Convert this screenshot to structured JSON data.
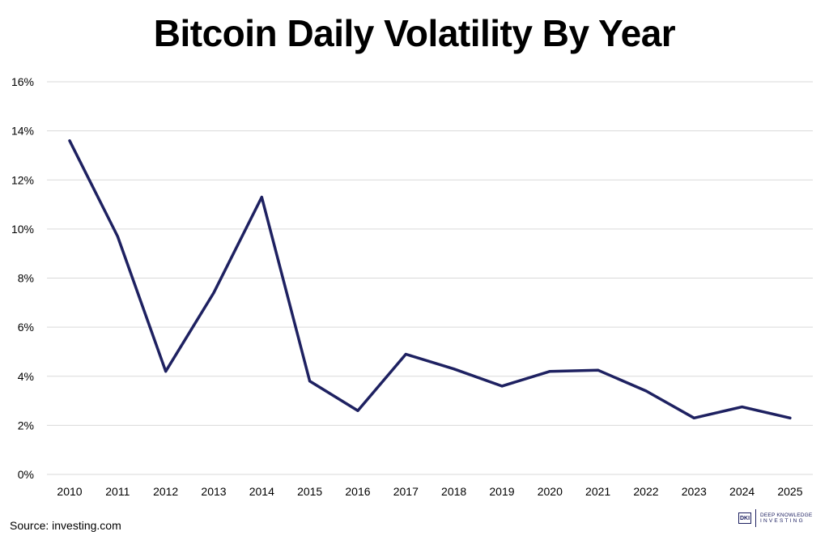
{
  "source_text": "Source: investing.com",
  "logo": {
    "mark": "DKI",
    "line1": "DEEP KNOWLEDGE",
    "line2": "INVESTING"
  },
  "colors": {
    "line": "#1e2161",
    "grid": "#d9d9d9",
    "axis_text": "#000000"
  },
  "chart_data": {
    "type": "line",
    "title": "Bitcoin Daily Volatility By Year",
    "xlabel": "",
    "ylabel": "",
    "categories": [
      "2010",
      "2011",
      "2012",
      "2013",
      "2014",
      "2015",
      "2016",
      "2017",
      "2018",
      "2019",
      "2020",
      "2021",
      "2022",
      "2023",
      "2024",
      "2025"
    ],
    "series": [
      {
        "name": "Daily Volatility",
        "values": [
          13.6,
          9.7,
          4.2,
          7.4,
          11.3,
          3.8,
          2.6,
          4.9,
          4.3,
          3.6,
          4.2,
          4.25,
          3.4,
          2.3,
          2.75,
          2.3
        ]
      }
    ],
    "ylim": [
      0,
      16
    ],
    "yticks": [
      0,
      2,
      4,
      6,
      8,
      10,
      12,
      14,
      16
    ],
    "ytick_labels": [
      "0%",
      "2%",
      "4%",
      "6%",
      "8%",
      "10%",
      "12%",
      "14%",
      "16%"
    ],
    "grid": true,
    "legend": "none"
  }
}
